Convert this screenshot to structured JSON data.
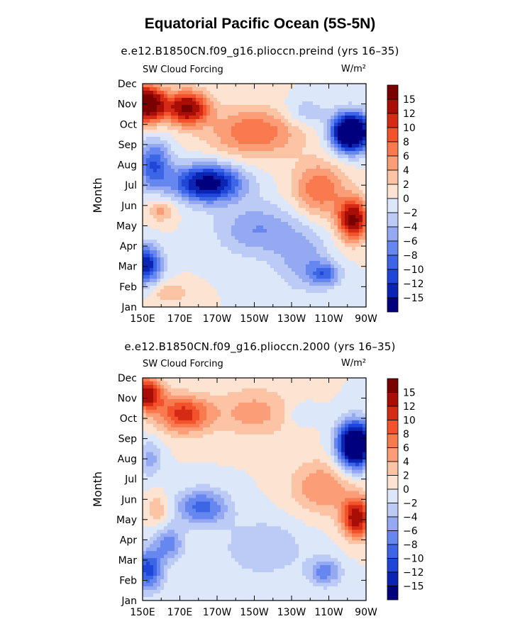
{
  "title": "Equatorial Pacific Ocean (5S-5N)",
  "chart_data": [
    {
      "type": "heatmap",
      "title": "e.e12.B1850CN.f09_g16.plioccn.preind (yrs 16–35)",
      "left_label": "SW Cloud Forcing",
      "right_label": "W/m²",
      "ylabel": "Month",
      "x_ticks": [
        "150E",
        "170E",
        "170W",
        "150W",
        "130W",
        "110W",
        "90W"
      ],
      "x_lon": [
        150,
        170,
        190,
        210,
        230,
        250,
        270
      ],
      "xlim": [
        150,
        270
      ],
      "y_ticks": [
        "Jan",
        "Feb",
        "Mar",
        "Apr",
        "May",
        "Jun",
        "Jul",
        "Aug",
        "Sep",
        "Oct",
        "Nov",
        "Dec"
      ],
      "ylim": [
        1,
        12
      ],
      "colorbar_labels": [
        "15",
        "12",
        "10",
        "8",
        "6",
        "4",
        "2",
        "0",
        "−2",
        "−4",
        "−6",
        "−8",
        "−10",
        "−12",
        "−15"
      ],
      "levels": [
        -15,
        -12,
        -10,
        -8,
        -6,
        -4,
        -2,
        0,
        2,
        4,
        6,
        8,
        10,
        12,
        15
      ],
      "colors": [
        "#00007f",
        "#0a24b3",
        "#1f45d9",
        "#3d66e6",
        "#6687f0",
        "#94a9f2",
        "#bccbf5",
        "#dde7fa",
        "#fde3d2",
        "#fcc3a4",
        "#fb9e78",
        "#f97a4f",
        "#f2522c",
        "#d52b15",
        "#a80d06",
        "#7a0000"
      ],
      "features": [
        {
          "lon": 152,
          "month": 11,
          "amp": 20,
          "sx": 10,
          "sy": 0.9
        },
        {
          "lon": 174,
          "month": 10.8,
          "amp": 16,
          "sx": 11,
          "sy": 0.8
        },
        {
          "lon": 210,
          "month": 9.6,
          "amp": 8,
          "sx": 24,
          "sy": 1.2
        },
        {
          "lon": 237,
          "month": 10.6,
          "amp": -4,
          "sx": 11,
          "sy": 0.7
        },
        {
          "lon": 262,
          "month": 9.6,
          "amp": -26,
          "sx": 10,
          "sy": 0.9
        },
        {
          "lon": 263,
          "month": 5.3,
          "amp": 16,
          "sx": 8,
          "sy": 1.0
        },
        {
          "lon": 245,
          "month": 6.8,
          "amp": 8,
          "sx": 14,
          "sy": 1.3
        },
        {
          "lon": 185,
          "month": 7.1,
          "amp": -17,
          "sx": 18,
          "sy": 0.9
        },
        {
          "lon": 156,
          "month": 8,
          "amp": -10,
          "sx": 9,
          "sy": 1.2
        },
        {
          "lon": 152,
          "month": 3.1,
          "amp": -14,
          "sx": 8,
          "sy": 0.9
        },
        {
          "lon": 212,
          "month": 4.8,
          "amp": -6,
          "sx": 22,
          "sy": 1.3
        },
        {
          "lon": 248,
          "month": 2.6,
          "amp": -8,
          "sx": 8,
          "sy": 0.6
        },
        {
          "lon": 236,
          "month": 3.3,
          "amp": -5,
          "sx": 14,
          "sy": 1.5
        },
        {
          "lon": 160,
          "month": 5.8,
          "amp": 5,
          "sx": 7,
          "sy": 0.6
        },
        {
          "lon": 165,
          "month": 1.7,
          "amp": 4,
          "sx": 10,
          "sy": 0.5
        }
      ]
    },
    {
      "type": "heatmap",
      "title": "e.e12.B1850CN.f09_g16.plioccn.2000 (yrs 16–35)",
      "left_label": "SW Cloud Forcing",
      "right_label": "W/m²",
      "ylabel": "Month",
      "x_ticks": [
        "150E",
        "170E",
        "170W",
        "150W",
        "130W",
        "110W",
        "90W"
      ],
      "x_lon": [
        150,
        170,
        190,
        210,
        230,
        250,
        270
      ],
      "xlim": [
        150,
        270
      ],
      "y_ticks": [
        "Jan",
        "Feb",
        "Mar",
        "Apr",
        "May",
        "Jun",
        "Jul",
        "Aug",
        "Sep",
        "Oct",
        "Nov",
        "Dec"
      ],
      "ylim": [
        1,
        12
      ],
      "colorbar_labels": [
        "15",
        "12",
        "10",
        "8",
        "6",
        "4",
        "2",
        "0",
        "−2",
        "−4",
        "−6",
        "−8",
        "−10",
        "−12",
        "−15"
      ],
      "levels": [
        -15,
        -12,
        -10,
        -8,
        -6,
        -4,
        -2,
        0,
        2,
        4,
        6,
        8,
        10,
        12,
        15
      ],
      "colors": [
        "#00007f",
        "#0a24b3",
        "#1f45d9",
        "#3d66e6",
        "#6687f0",
        "#94a9f2",
        "#bccbf5",
        "#dde7fa",
        "#fde3d2",
        "#fcc3a4",
        "#fb9e78",
        "#f97a4f",
        "#f2522c",
        "#d52b15",
        "#a80d06",
        "#7a0000"
      ],
      "features": [
        {
          "lon": 152,
          "month": 11.2,
          "amp": 14,
          "sx": 9,
          "sy": 0.8
        },
        {
          "lon": 172,
          "month": 10.2,
          "amp": 11,
          "sx": 14,
          "sy": 0.9
        },
        {
          "lon": 210,
          "month": 10.3,
          "amp": 5,
          "sx": 22,
          "sy": 1.2
        },
        {
          "lon": 235,
          "month": 10.2,
          "amp": -3,
          "sx": 9,
          "sy": 0.6
        },
        {
          "lon": 264,
          "month": 8.7,
          "amp": -24,
          "sx": 9,
          "sy": 1.1
        },
        {
          "lon": 265,
          "month": 5.1,
          "amp": 14,
          "sx": 8,
          "sy": 1.0
        },
        {
          "lon": 246,
          "month": 6.6,
          "amp": 6,
          "sx": 16,
          "sy": 1.3
        },
        {
          "lon": 182,
          "month": 5.6,
          "amp": -9,
          "sx": 14,
          "sy": 0.9
        },
        {
          "lon": 154,
          "month": 8.0,
          "amp": -5,
          "sx": 6,
          "sy": 0.9
        },
        {
          "lon": 153,
          "month": 2.5,
          "amp": -11,
          "sx": 8,
          "sy": 1.0
        },
        {
          "lon": 164,
          "month": 3.8,
          "amp": -7,
          "sx": 8,
          "sy": 0.8
        },
        {
          "lon": 215,
          "month": 3.6,
          "amp": -4,
          "sx": 22,
          "sy": 1.4
        },
        {
          "lon": 248,
          "month": 2.4,
          "amp": -7,
          "sx": 9,
          "sy": 0.7
        },
        {
          "lon": 158,
          "month": 5.5,
          "amp": 4,
          "sx": 6,
          "sy": 0.7
        }
      ]
    }
  ]
}
